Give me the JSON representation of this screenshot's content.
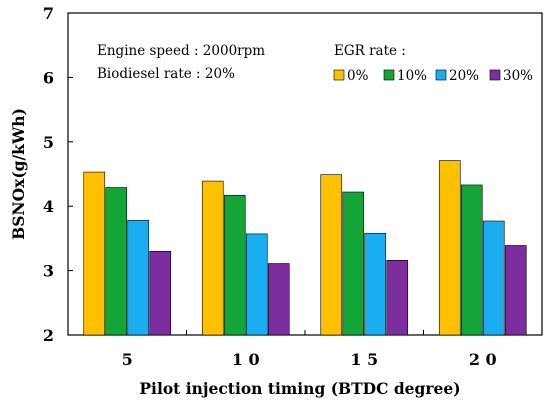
{
  "chart_data": {
    "type": "bar",
    "title": "",
    "xlabel": "Pilot injection timing (BTDC degree)",
    "ylabel": "BSNOx(g/kWh)",
    "ylim": [
      2,
      7
    ],
    "yticks": [
      "2",
      "3",
      "4",
      "5",
      "6",
      "7"
    ],
    "categories": [
      "5",
      "10",
      "15",
      "20"
    ],
    "category_labels": [
      "5",
      "1 0",
      "1 5",
      "2 0"
    ],
    "series": [
      {
        "name": "0%",
        "color": "#FFC000",
        "values": [
          4.53,
          4.39,
          4.49,
          4.71
        ]
      },
      {
        "name": "10%",
        "color": "#13A538",
        "values": [
          4.29,
          4.17,
          4.22,
          4.33
        ]
      },
      {
        "name": "20%",
        "color": "#1AADEF",
        "values": [
          3.78,
          3.57,
          3.58,
          3.77
        ]
      },
      {
        "name": "30%",
        "color": "#7D2E9E",
        "values": [
          3.3,
          3.11,
          3.16,
          3.39
        ]
      }
    ],
    "annotations": {
      "line1": "Engine speed : 2000rpm",
      "line2": "Biodiesel rate : 20%",
      "legend_title": "EGR rate :"
    },
    "grid": false,
    "legend_placement": "top-right"
  }
}
